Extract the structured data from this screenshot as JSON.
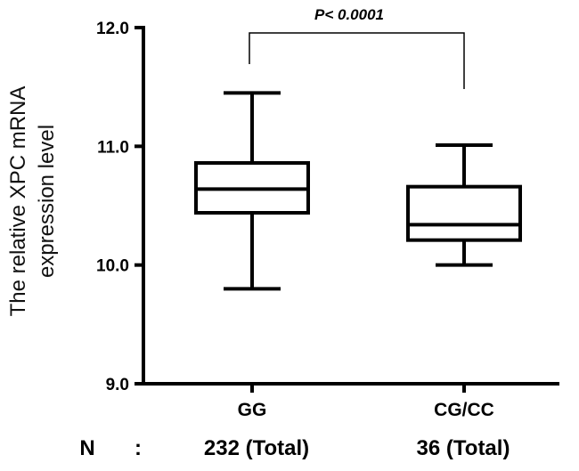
{
  "chart_data": {
    "type": "box",
    "ylabel_line1": "The relative XPC mRNA",
    "ylabel_line2": "expression level",
    "ylim": [
      9.0,
      12.0
    ],
    "yticks": [
      "9.0",
      "10.0",
      "11.0",
      "12.0"
    ],
    "yticks_values": [
      9.0,
      10.0,
      11.0,
      12.0
    ],
    "categories": [
      "GG",
      "CG/CC"
    ],
    "boxes": [
      {
        "category": "GG",
        "min": 9.8,
        "q1": 10.44,
        "median": 10.64,
        "q3": 10.86,
        "max": 11.45
      },
      {
        "category": "CG/CC",
        "min": 10.0,
        "q1": 10.21,
        "median": 10.34,
        "q3": 10.66,
        "max": 11.01
      }
    ],
    "annotation": "P< 0.0001",
    "n_row": {
      "label": "N",
      "separator": ":",
      "values": [
        "232 (Total)",
        "36 (Total)"
      ]
    }
  }
}
